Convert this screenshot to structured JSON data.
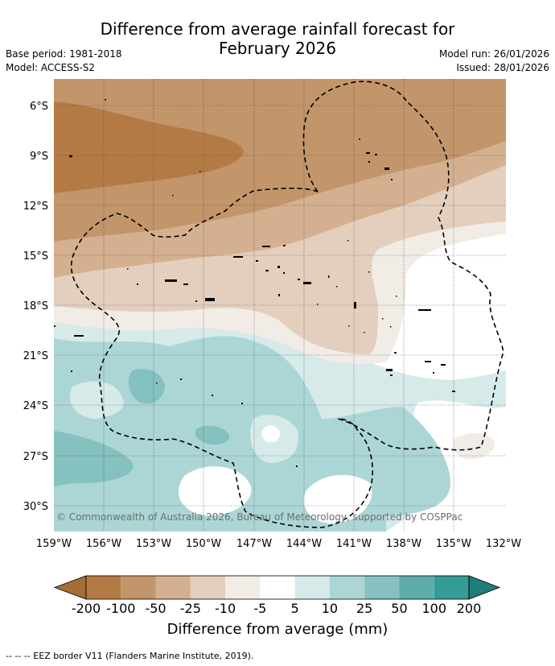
{
  "title_line1": "Difference from average rainfall forecast for",
  "title_line2": "February 2026",
  "base_period": "Base period: 1981-2018",
  "model": "Model: ACCESS-S2",
  "model_run": "Model run: 26/01/2026",
  "issued": "Issued: 28/01/2026",
  "map": {
    "lon_labels": [
      "159°W",
      "156°W",
      "153°W",
      "150°W",
      "147°W",
      "144°W",
      "141°W",
      "138°W",
      "135°W",
      "132°W"
    ],
    "lat_labels": [
      "6°S",
      "9°S",
      "12°S",
      "15°S",
      "18°S",
      "21°S",
      "24°S",
      "27°S",
      "30°S"
    ],
    "copyright": "© Commonwealth of Australia 2026, Bureau of Meteorology, supported by COSPPac"
  },
  "colorbar": {
    "ticks": [
      "-200",
      "-100",
      "-50",
      "-25",
      "-10",
      "-5",
      "5",
      "10",
      "25",
      "50",
      "100",
      "200"
    ],
    "colors": [
      "#a66d35",
      "#b47a45",
      "#c3956b",
      "#d4b090",
      "#e4cfbe",
      "#f2ece6",
      "#ffffff",
      "#d6eae9",
      "#acd6d5",
      "#84c1bf",
      "#5dadab",
      "#349b97",
      "#1f7d79"
    ],
    "label": "Difference from average (mm)"
  },
  "legend_note": "-- -- -- EEZ border V11 (Flanders Marine Institute, 2019)."
}
